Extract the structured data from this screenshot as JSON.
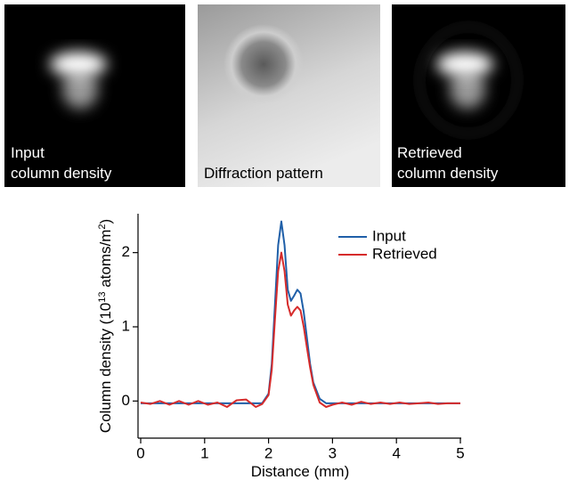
{
  "panels": [
    {
      "label_lines": [
        "Input",
        "column density"
      ]
    },
    {
      "label_lines": [
        "Diffraction pattern"
      ]
    },
    {
      "label_lines": [
        "Retrieved",
        "column density"
      ]
    }
  ],
  "chart_data": {
    "type": "line",
    "xlabel": "Distance (mm)",
    "ylabel_parts": [
      "Column density (10",
      "13",
      " atoms/m",
      "2",
      ")"
    ],
    "x": [
      0,
      0.15,
      0.3,
      0.45,
      0.6,
      0.75,
      0.9,
      1.05,
      1.2,
      1.35,
      1.5,
      1.65,
      1.8,
      1.9,
      2.0,
      2.05,
      2.1,
      2.15,
      2.2,
      2.25,
      2.3,
      2.35,
      2.4,
      2.45,
      2.5,
      2.55,
      2.6,
      2.65,
      2.7,
      2.8,
      2.9,
      3.0,
      3.15,
      3.3,
      3.45,
      3.6,
      3.75,
      3.9,
      4.05,
      4.2,
      4.35,
      4.5,
      4.65,
      4.8,
      5.0
    ],
    "series": [
      {
        "name": "Input",
        "color": "#1f5fa8",
        "values": [
          -0.03,
          -0.03,
          -0.03,
          -0.03,
          -0.03,
          -0.03,
          -0.03,
          -0.03,
          -0.03,
          -0.03,
          -0.03,
          -0.03,
          -0.03,
          -0.03,
          0.1,
          0.5,
          1.3,
          2.1,
          2.42,
          2.1,
          1.5,
          1.35,
          1.42,
          1.5,
          1.45,
          1.2,
          0.85,
          0.5,
          0.25,
          0.03,
          -0.03,
          -0.03,
          -0.03,
          -0.03,
          -0.03,
          -0.03,
          -0.03,
          -0.03,
          -0.03,
          -0.03,
          -0.03,
          -0.03,
          -0.03,
          -0.03,
          -0.03
        ]
      },
      {
        "name": "Retrieved",
        "color": "#d62b2b",
        "values": [
          -0.02,
          -0.04,
          0.0,
          -0.05,
          0.0,
          -0.05,
          0.0,
          -0.05,
          -0.02,
          -0.08,
          0.01,
          0.02,
          -0.08,
          -0.04,
          0.08,
          0.42,
          1.1,
          1.75,
          2.0,
          1.75,
          1.3,
          1.15,
          1.22,
          1.27,
          1.22,
          1.0,
          0.72,
          0.45,
          0.22,
          -0.02,
          -0.08,
          -0.05,
          -0.02,
          -0.05,
          -0.01,
          -0.04,
          -0.02,
          -0.04,
          -0.02,
          -0.04,
          -0.03,
          -0.02,
          -0.04,
          -0.03,
          -0.03
        ]
      }
    ],
    "xlim": [
      0,
      5
    ],
    "xticks": [
      0,
      1,
      2,
      3,
      4,
      5
    ],
    "ylim": [
      -0.5,
      2.5
    ],
    "yticks": [
      0,
      1,
      2
    ],
    "legend": "upper right"
  }
}
